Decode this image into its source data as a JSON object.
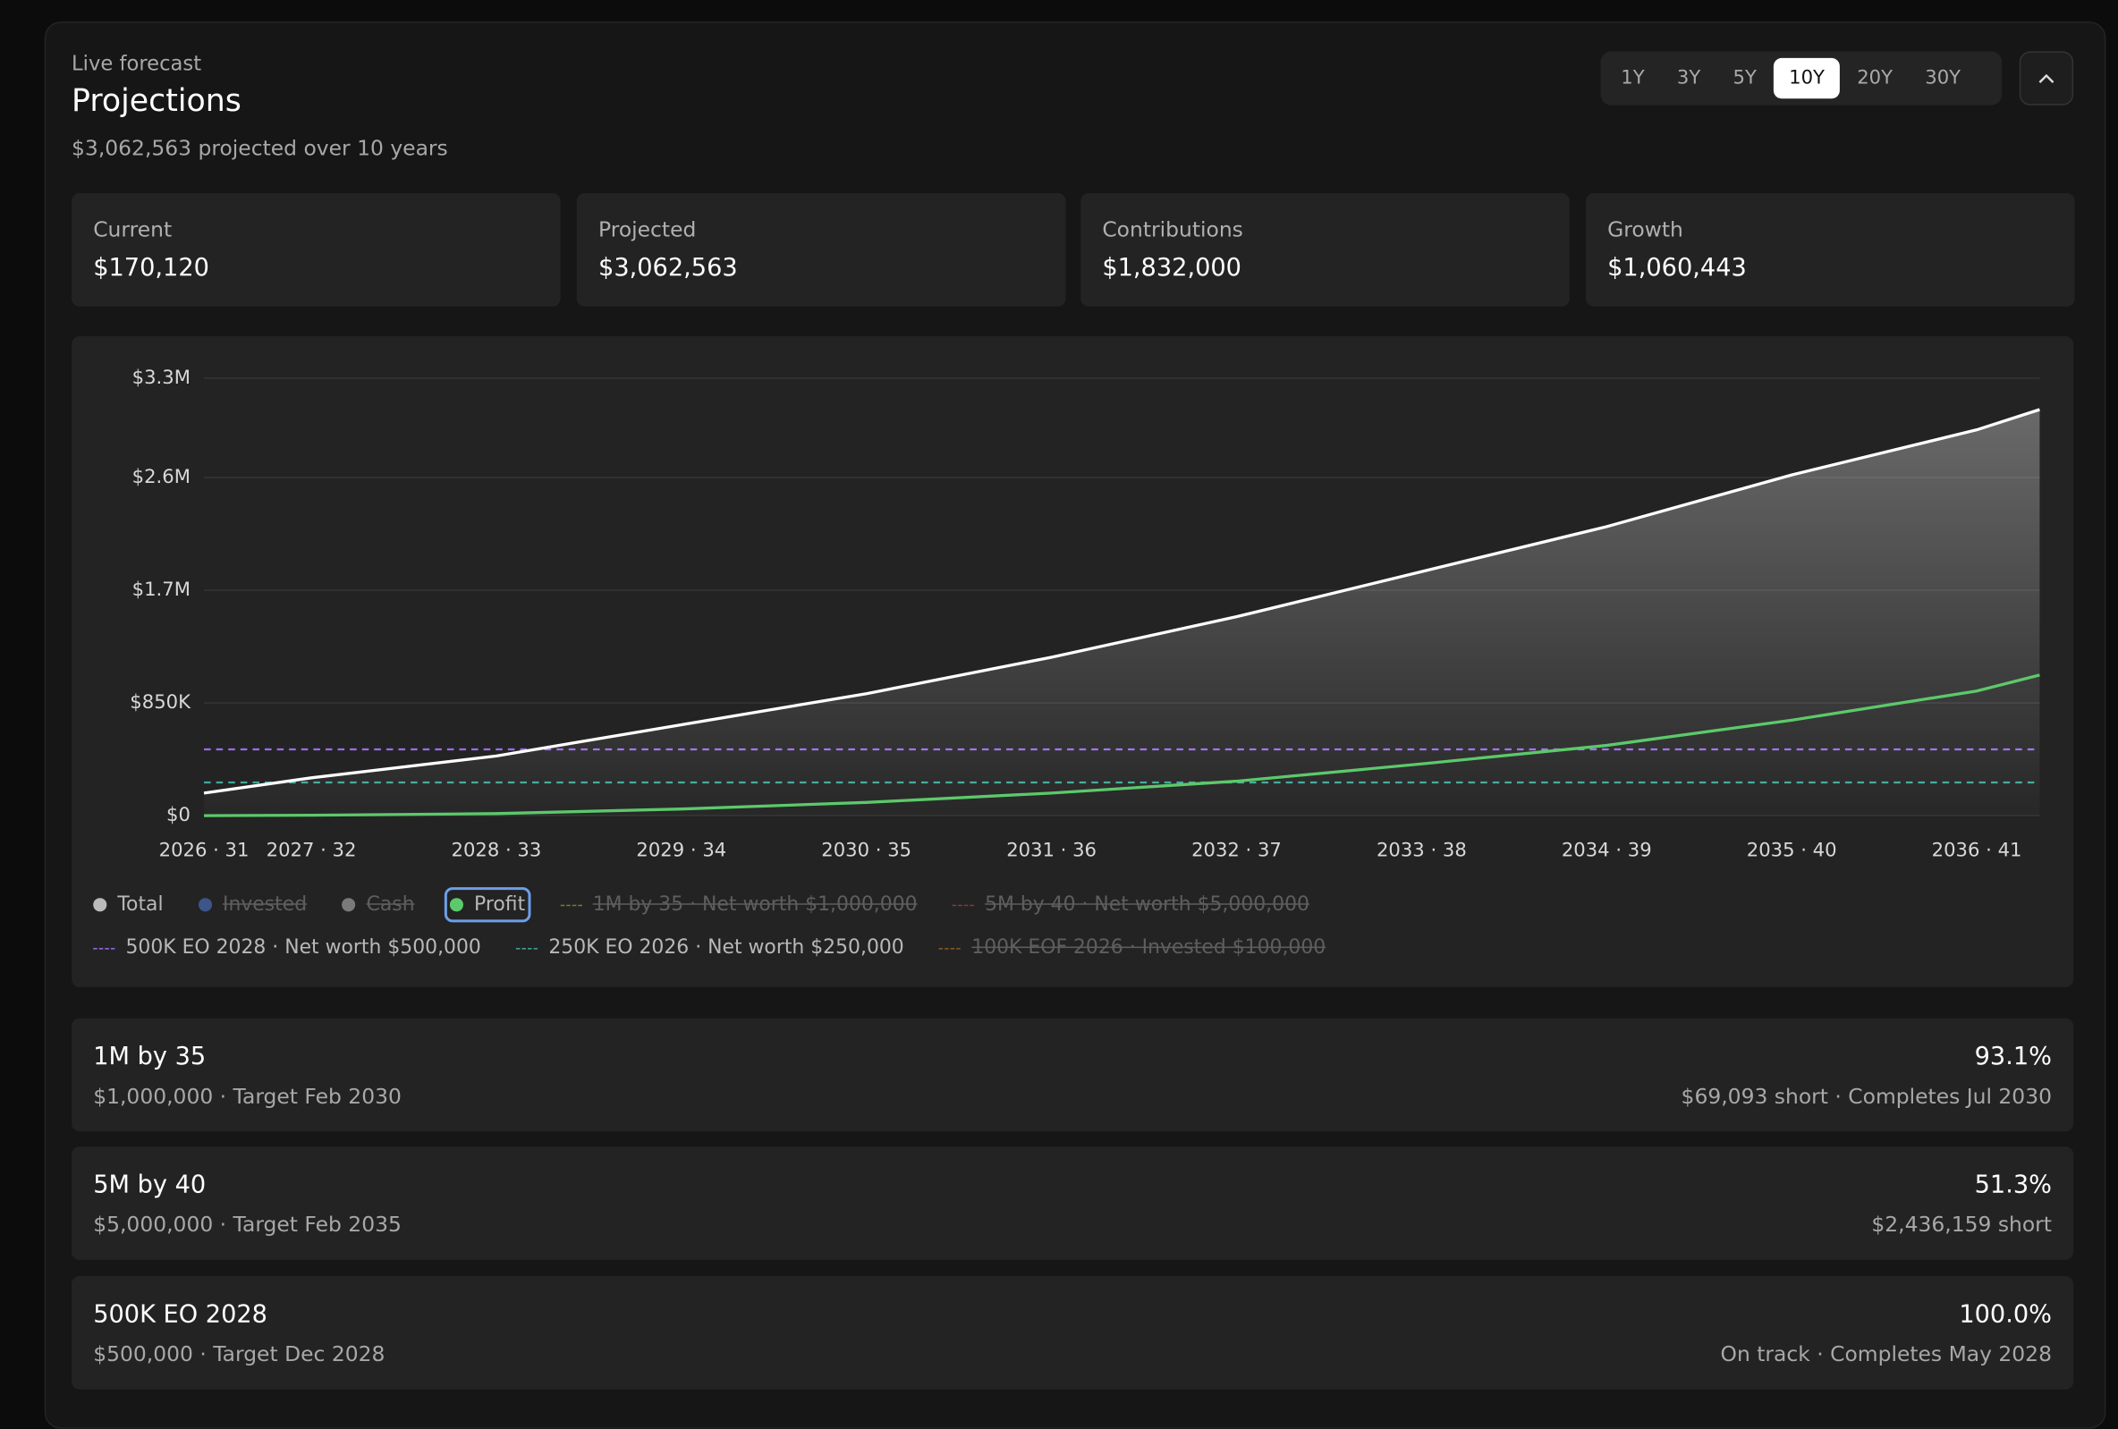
{
  "header": {
    "eyebrow": "Live forecast",
    "title": "Projections",
    "subtitle": "$3,062,563 projected over 10 years"
  },
  "ranges": {
    "options": [
      "1Y",
      "3Y",
      "5Y",
      "10Y",
      "20Y",
      "30Y"
    ],
    "active": 3
  },
  "stats": [
    {
      "label": "Current",
      "value": "$170,120"
    },
    {
      "label": "Projected",
      "value": "$3,062,563"
    },
    {
      "label": "Contributions",
      "value": "$1,832,000"
    },
    {
      "label": "Growth",
      "value": "$1,060,443"
    }
  ],
  "chart_data": {
    "type": "line",
    "x": [
      2026.42,
      2027,
      2028,
      2029,
      2030,
      2031,
      2032,
      2033,
      2034,
      2035,
      2036,
      2036.34
    ],
    "xlim": [
      2026.42,
      2036.34
    ],
    "xticks": [
      {
        "value": 2026.42,
        "label": "2026 · 31"
      },
      {
        "value": 2027,
        "label": "2027 · 32"
      },
      {
        "value": 2028,
        "label": "2028 · 33"
      },
      {
        "value": 2029,
        "label": "2029 · 34"
      },
      {
        "value": 2030,
        "label": "2030 · 35"
      },
      {
        "value": 2031,
        "label": "2031 · 36"
      },
      {
        "value": 2032,
        "label": "2032 · 37"
      },
      {
        "value": 2033,
        "label": "2033 · 38"
      },
      {
        "value": 2034,
        "label": "2034 · 39"
      },
      {
        "value": 2035,
        "label": "2035 · 40"
      },
      {
        "value": 2036,
        "label": "2036 · 41"
      }
    ],
    "ylim": [
      0,
      3300000
    ],
    "yticks": [
      {
        "value": 0,
        "label": "$0"
      },
      {
        "value": 850000,
        "label": "$850K"
      },
      {
        "value": 1700000,
        "label": "$1.7M"
      },
      {
        "value": 2550000,
        "label": "$2.6M"
      },
      {
        "value": 3300000,
        "label": "$3.3M"
      }
    ],
    "grid": true,
    "series": [
      {
        "name": "Total",
        "color": "#ffffff",
        "visible": true,
        "area": true,
        "values": [
          170120,
          285000,
          450000,
          685000,
          920000,
          1195000,
          1500000,
          1840000,
          2180000,
          2570000,
          2910000,
          3062563
        ]
      },
      {
        "name": "Invested",
        "color": "#3d5588",
        "visible": false
      },
      {
        "name": "Cash",
        "color": "#7a7a7a",
        "visible": false
      },
      {
        "name": "Profit",
        "color": "#5cc96b",
        "visible": true,
        "area": false,
        "values": [
          0,
          3000,
          15000,
          50000,
          100000,
          170000,
          260000,
          390000,
          530000,
          720000,
          940000,
          1060443
        ]
      }
    ],
    "targets": [
      {
        "name": "1M by 35 · Net worth $1,000,000",
        "color": "#7d7a2e",
        "visible": false
      },
      {
        "name": "5M by 40 · Net worth $5,000,000",
        "color": "#8a3b3b",
        "visible": false
      },
      {
        "name": "500K EO 2028 · Net worth $500,000",
        "color": "#9b6cf0",
        "visible": true,
        "value": 500000
      },
      {
        "name": "250K EO 2026 · Net worth $250,000",
        "color": "#3fa89a",
        "visible": true,
        "value": 250000
      },
      {
        "name": "100K EOF 2026 · Invested $100,000",
        "color": "#8a5a2a",
        "visible": false
      }
    ]
  },
  "goals": [
    {
      "title": "1M by 35",
      "detail": "$1,000,000 · Target Feb 2030",
      "progress": "93.1%",
      "status": "$69,093 short · Completes Jul 2030"
    },
    {
      "title": "5M by 40",
      "detail": "$5,000,000 · Target Feb 2035",
      "progress": "51.3%",
      "status": "$2,436,159 short"
    },
    {
      "title": "500K EO 2028",
      "detail": "$500,000 · Target Dec 2028",
      "progress": "100.0%",
      "status": "On track · Completes May 2028"
    }
  ]
}
